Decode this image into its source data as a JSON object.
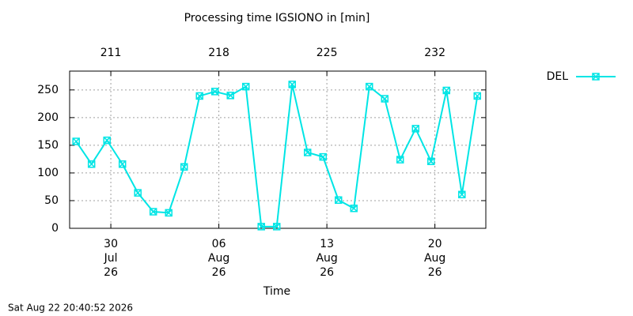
{
  "chart_data": {
    "type": "line",
    "title": "Processing time IGSIONO in [min]",
    "x_label": "Time",
    "timestamp": "Sat Aug 22 20:40:52 2026",
    "x": [
      208.75,
      209.75,
      210.75,
      211.75,
      212.75,
      213.75,
      214.75,
      215.75,
      216.75,
      217.75,
      218.75,
      219.75,
      220.75,
      221.75,
      222.75,
      223.75,
      224.75,
      225.75,
      226.75,
      227.75,
      228.75,
      229.75,
      230.75,
      231.75,
      232.75,
      233.75,
      234.75
    ],
    "series": [
      {
        "name": "DEL",
        "color": "#00e5e5",
        "values": [
          157,
          116,
          159,
          116,
          64,
          30,
          28,
          111,
          239,
          247,
          240,
          256,
          3,
          3,
          260,
          137,
          129,
          51,
          36,
          256,
          234,
          124,
          180,
          121,
          249,
          61,
          239
        ]
      }
    ],
    "xlim": [
      208.33,
      235.3
    ],
    "xticks": [
      {
        "value": 211,
        "label": [
          "30",
          "Jul",
          "26"
        ]
      },
      {
        "value": 218,
        "label": [
          "06",
          "Aug",
          "26"
        ]
      },
      {
        "value": 225,
        "label": [
          "13",
          "Aug",
          "26"
        ]
      },
      {
        "value": 232,
        "label": [
          "20",
          "Aug",
          "26"
        ]
      }
    ],
    "x2ticks": [
      211,
      218,
      225,
      232
    ],
    "ylim": [
      0,
      284
    ],
    "yticks": [
      0,
      50,
      100,
      150,
      200,
      250
    ],
    "grid": true,
    "legend": "right"
  }
}
